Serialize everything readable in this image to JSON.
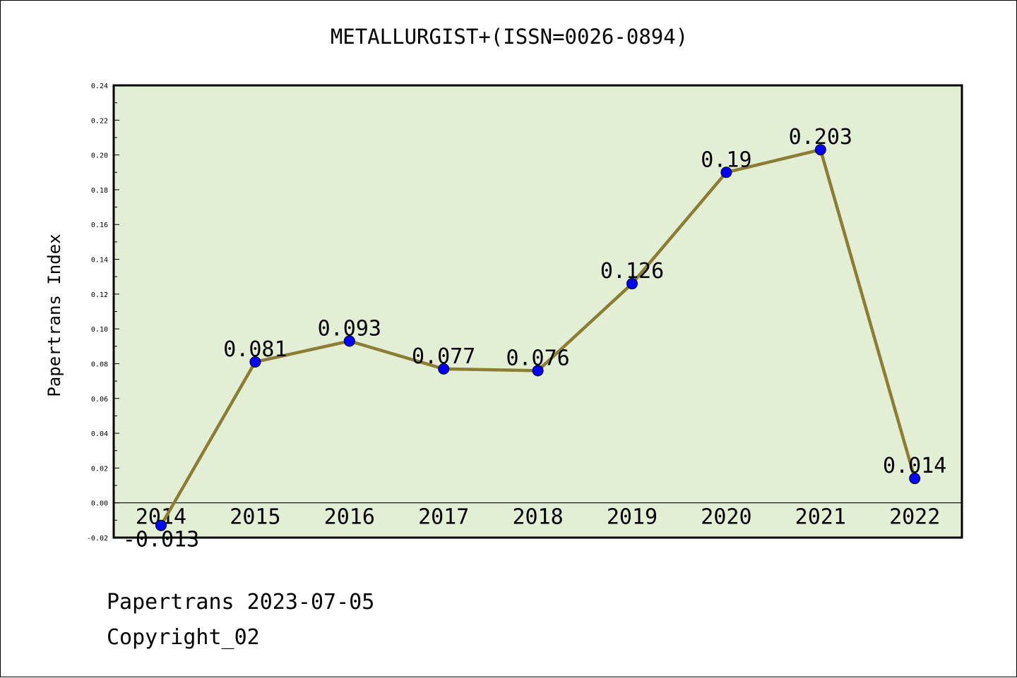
{
  "chart_data": {
    "type": "line",
    "title": "METALLURGIST+(ISSN=0026-0894)",
    "ylabel": "Papertrans Index",
    "xlabel": "",
    "categories": [
      "2014",
      "2015",
      "2016",
      "2017",
      "2018",
      "2019",
      "2020",
      "2021",
      "2022"
    ],
    "series": [
      {
        "values": [
          -0.013,
          0.081,
          0.093,
          0.077,
          0.076,
          0.126,
          0.19,
          0.203,
          0.014
        ]
      }
    ],
    "data_labels": [
      "-0.013",
      "0.081",
      "0.093",
      "0.077",
      "0.076",
      "0.126",
      "0.19",
      "0.203",
      "0.014"
    ],
    "ylim": [
      -0.02,
      0.24
    ],
    "yticks": [
      "-0.02",
      "0.00",
      "0.02",
      "0.04",
      "0.06",
      "0.08",
      "0.10",
      "0.12",
      "0.14",
      "0.16",
      "0.18",
      "0.20",
      "0.22",
      "0.24"
    ],
    "grid": false,
    "legend": "none",
    "colors": {
      "plot_background": "#e2efd5",
      "line": "#8b7d33",
      "marker": "#0000ff",
      "zero_line": "#000000"
    }
  },
  "footer": {
    "source": "Papertrans 2023-07-05",
    "copyright": "Copyright_02"
  }
}
